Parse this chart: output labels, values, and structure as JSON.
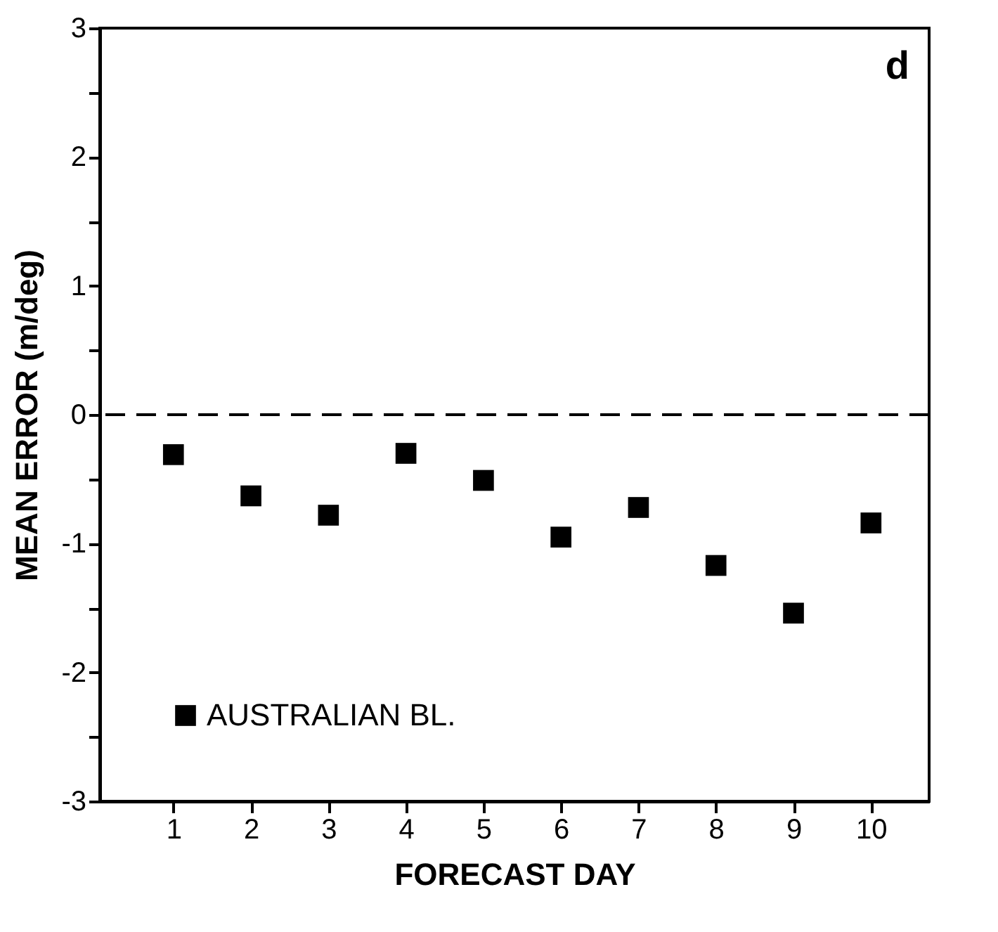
{
  "chart_data": {
    "type": "scatter",
    "xlabel": "FORECAST DAY",
    "ylabel": "MEAN ERROR (m/deg)",
    "x": [
      1,
      2,
      3,
      4,
      5,
      6,
      7,
      8,
      9,
      10
    ],
    "series": [
      {
        "name": "AUSTRALIAN BL.",
        "color": "#000000",
        "values": [
          -0.31,
          -0.63,
          -0.78,
          -0.3,
          -0.51,
          -0.95,
          -0.72,
          -1.17,
          -1.54,
          -0.84
        ]
      }
    ],
    "xlim": [
      0.05,
      10.75
    ],
    "xticks": [
      1,
      2,
      3,
      4,
      5,
      6,
      7,
      8,
      9,
      10
    ],
    "ylim": [
      -3,
      3
    ],
    "yticks": [
      -3,
      {
        "value": -2.5,
        "label": null
      },
      -2,
      {
        "value": -1.5,
        "label": null
      },
      -1,
      {
        "value": -0.5,
        "label": null
      },
      0,
      {
        "value": 0.5,
        "label": null
      },
      1,
      {
        "value": 1.5,
        "label": null
      },
      2,
      {
        "value": 2.5,
        "label": null
      },
      3
    ],
    "ref_lines": [
      {
        "axis": "y",
        "value": 0,
        "line_style": "dashed",
        "color": "#000000"
      }
    ],
    "annotations": [
      "d"
    ],
    "marker": "square",
    "legend": "bottom left",
    "grid": false
  }
}
